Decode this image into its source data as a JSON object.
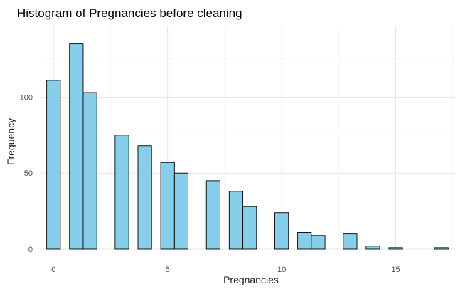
{
  "chart_data": {
    "type": "bar",
    "title": "Histogram of Pregnancies before cleaning",
    "xlabel": "Pregnancies",
    "ylabel": "Frequency",
    "xlim": [
      -0.6,
      17.6
    ],
    "ylim": [
      0,
      147
    ],
    "x_ticks": [
      0,
      5,
      10,
      15
    ],
    "y_ticks": [
      0,
      50,
      100
    ],
    "grid": true,
    "legend": "none",
    "bar_width": 0.6,
    "bar_color": "#87CEEB",
    "bar_edge_color": "#000000",
    "bins": [
      {
        "x": 0,
        "count": 111
      },
      {
        "x": 1,
        "count": 135
      },
      {
        "x": 1.6,
        "count": 103
      },
      {
        "x": 3,
        "count": 75
      },
      {
        "x": 4,
        "count": 68
      },
      {
        "x": 5,
        "count": 57
      },
      {
        "x": 5.6,
        "count": 50
      },
      {
        "x": 7,
        "count": 45
      },
      {
        "x": 8,
        "count": 38
      },
      {
        "x": 8.6,
        "count": 28
      },
      {
        "x": 10,
        "count": 24
      },
      {
        "x": 11,
        "count": 11
      },
      {
        "x": 11.6,
        "count": 9
      },
      {
        "x": 13,
        "count": 10
      },
      {
        "x": 14,
        "count": 2
      },
      {
        "x": 15,
        "count": 1
      },
      {
        "x": 16.2,
        "count": 0
      },
      {
        "x": 17,
        "count": 1
      }
    ]
  }
}
